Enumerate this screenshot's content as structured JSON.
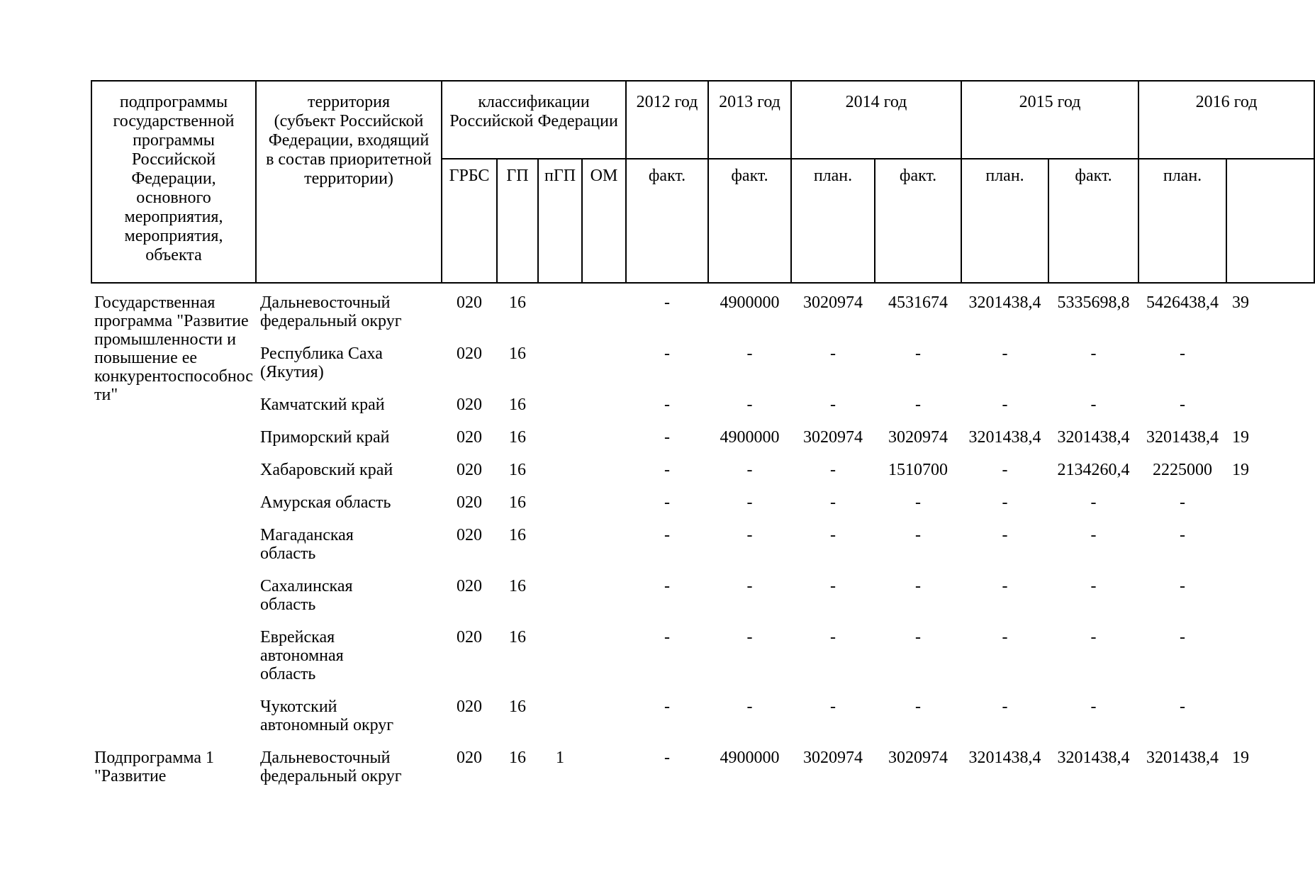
{
  "table": {
    "header": {
      "col_program": "подпрограммы государственной программы Российской Федерации, основного мероприятия, мероприятия, объекта",
      "col_territory": "территория\n(субъект Российской Федерации, входящий в состав приоритетной территории)",
      "col_classification": "классификации Российской Федерации",
      "class_subcols": [
        "ГРБС",
        "ГП",
        "пГП",
        "ОМ"
      ],
      "years": [
        {
          "label": "2012 год",
          "sub": [
            "факт."
          ]
        },
        {
          "label": "2013 год",
          "sub": [
            "факт."
          ]
        },
        {
          "label": "2014 год",
          "sub": [
            "план.",
            "факт."
          ]
        },
        {
          "label": "2015 год",
          "sub": [
            "план.",
            "факт."
          ]
        },
        {
          "label": "2016 год",
          "sub": [
            "план.",
            ""
          ]
        }
      ]
    },
    "groups": [
      {
        "program": "Государственная программа \"Развитие промышленности и повышение ее конкурентоспособности\"",
        "rows": [
          {
            "territory": "Дальневосточный федеральный округ",
            "grbs": "020",
            "gp": "16",
            "pgp": "",
            "om": "",
            "values": [
              "-",
              "4900000",
              "3020974",
              "4531674",
              "3201438,4",
              "5335698,8",
              "5426438,4",
              "39"
            ]
          },
          {
            "territory": "Республика Саха (Якутия)",
            "grbs": "020",
            "gp": "16",
            "pgp": "",
            "om": "",
            "values": [
              "-",
              "-",
              "-",
              "-",
              "-",
              "-",
              "-",
              ""
            ]
          },
          {
            "territory": "Камчатский край",
            "grbs": "020",
            "gp": "16",
            "pgp": "",
            "om": "",
            "values": [
              "-",
              "-",
              "-",
              "-",
              "-",
              "-",
              "-",
              ""
            ]
          },
          {
            "territory": "Приморский край",
            "grbs": "020",
            "gp": "16",
            "pgp": "",
            "om": "",
            "values": [
              "-",
              "4900000",
              "3020974",
              "3020974",
              "3201438,4",
              "3201438,4",
              "3201438,4",
              "19"
            ]
          },
          {
            "territory": "Хабаровский край",
            "grbs": "020",
            "gp": "16",
            "pgp": "",
            "om": "",
            "values": [
              "-",
              "-",
              "-",
              "1510700",
              "-",
              "2134260,4",
              "2225000",
              "19"
            ]
          },
          {
            "territory": "Амурская область",
            "grbs": "020",
            "gp": "16",
            "pgp": "",
            "om": "",
            "values": [
              "-",
              "-",
              "-",
              "-",
              "-",
              "-",
              "-",
              ""
            ]
          },
          {
            "territory": "Магаданская область",
            "grbs": "020",
            "gp": "16",
            "pgp": "",
            "om": "",
            "values": [
              "-",
              "-",
              "-",
              "-",
              "-",
              "-",
              "-",
              ""
            ]
          },
          {
            "territory": "Сахалинская область",
            "grbs": "020",
            "gp": "16",
            "pgp": "",
            "om": "",
            "values": [
              "-",
              "-",
              "-",
              "-",
              "-",
              "-",
              "-",
              ""
            ]
          },
          {
            "territory": "Еврейская автономная область",
            "grbs": "020",
            "gp": "16",
            "pgp": "",
            "om": "",
            "values": [
              "-",
              "-",
              "-",
              "-",
              "-",
              "-",
              "-",
              ""
            ]
          },
          {
            "territory": "Чукотский автономный округ",
            "grbs": "020",
            "gp": "16",
            "pgp": "",
            "om": "",
            "values": [
              "-",
              "-",
              "-",
              "-",
              "-",
              "-",
              "-",
              ""
            ]
          }
        ]
      },
      {
        "program": "Подпрограмма 1 \"Развитие",
        "rows": [
          {
            "territory": "Дальневосточный федеральный округ",
            "grbs": "020",
            "gp": "16",
            "pgp": "1",
            "om": "",
            "values": [
              "-",
              "4900000",
              "3020974",
              "3020974",
              "3201438,4",
              "3201438,4",
              "3201438,4",
              "19"
            ]
          }
        ]
      }
    ]
  }
}
